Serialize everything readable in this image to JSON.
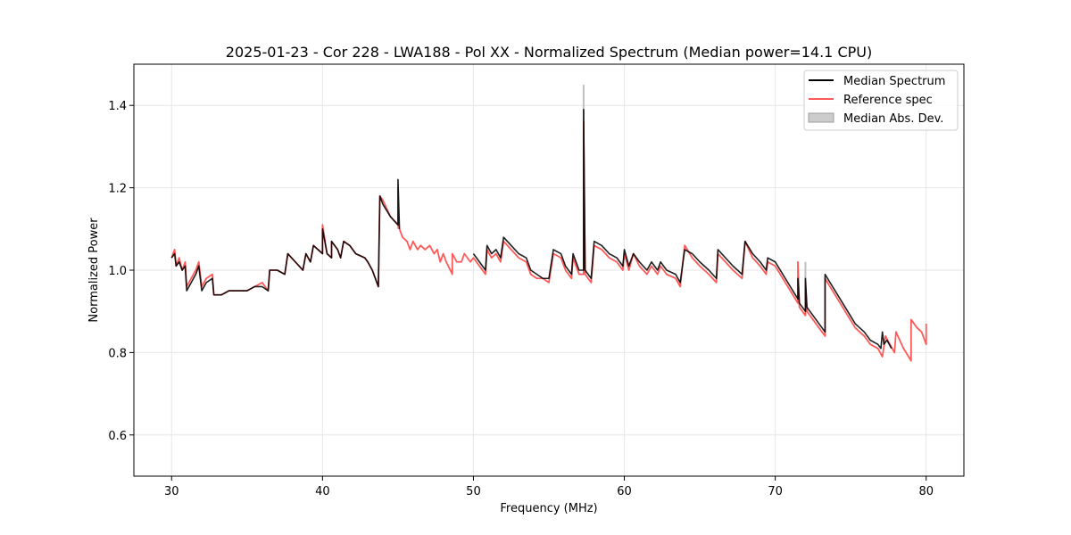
{
  "chart_data": {
    "type": "line",
    "title": "2025-01-23 - Cor 228 - LWA188 - Pol XX - Normalized Spectrum (Median power=14.1 CPU)",
    "xlabel": "Frequency (MHz)",
    "ylabel": "Normalized Power",
    "xlim": [
      27.5,
      82.5
    ],
    "ylim": [
      0.5,
      1.5
    ],
    "xticks": [
      30,
      40,
      50,
      60,
      70,
      80
    ],
    "yticks": [
      0.6,
      0.8,
      1.0,
      1.2,
      1.4
    ],
    "xtick_labels": [
      "30",
      "40",
      "50",
      "60",
      "70",
      "80"
    ],
    "ytick_labels": [
      "0.6",
      "0.8",
      "1.0",
      "1.2",
      "1.4"
    ],
    "grid": true,
    "legend_position": "top-right",
    "legend": [
      "Median Spectrum",
      "Reference spec",
      "Median Abs. Dev."
    ],
    "colors": {
      "median": "#000000",
      "reference": "#ff5a5a",
      "mad": "#bfbfbf"
    },
    "series": [
      {
        "name": "Reference spec",
        "points": [
          [
            30.0,
            1.03
          ],
          [
            30.2,
            1.05
          ],
          [
            30.3,
            1.01
          ],
          [
            30.5,
            1.03
          ],
          [
            30.7,
            1.0
          ],
          [
            30.9,
            1.02
          ],
          [
            31.0,
            0.96
          ],
          [
            31.3,
            0.98
          ],
          [
            31.6,
            1.0
          ],
          [
            31.8,
            1.02
          ],
          [
            32.0,
            0.96
          ],
          [
            32.3,
            0.98
          ],
          [
            32.7,
            0.99
          ],
          [
            32.8,
            0.94
          ],
          [
            33.3,
            0.94
          ],
          [
            33.8,
            0.95
          ],
          [
            34.3,
            0.95
          ],
          [
            35.0,
            0.95
          ],
          [
            35.5,
            0.96
          ],
          [
            36.0,
            0.97
          ],
          [
            36.4,
            0.95
          ],
          [
            36.5,
            1.0
          ],
          [
            37.0,
            1.0
          ],
          [
            37.5,
            0.99
          ],
          [
            37.7,
            1.04
          ],
          [
            38.2,
            1.02
          ],
          [
            38.7,
            1.0
          ],
          [
            38.9,
            1.04
          ],
          [
            39.2,
            1.02
          ],
          [
            39.4,
            1.06
          ],
          [
            39.7,
            1.05
          ],
          [
            40.0,
            1.04
          ],
          [
            40.0,
            1.11
          ],
          [
            40.3,
            1.04
          ],
          [
            40.6,
            1.03
          ],
          [
            40.6,
            1.07
          ],
          [
            41.0,
            1.05
          ],
          [
            41.2,
            1.03
          ],
          [
            41.4,
            1.07
          ],
          [
            41.8,
            1.06
          ],
          [
            42.2,
            1.04
          ],
          [
            42.8,
            1.03
          ],
          [
            43.0,
            1.02
          ],
          [
            43.3,
            1.0
          ],
          [
            43.7,
            0.96
          ],
          [
            43.8,
            1.18
          ],
          [
            44.0,
            1.17
          ],
          [
            44.5,
            1.13
          ],
          [
            45.0,
            1.11
          ],
          [
            45.3,
            1.08
          ],
          [
            45.6,
            1.07
          ],
          [
            45.8,
            1.05
          ],
          [
            46.0,
            1.07
          ],
          [
            46.3,
            1.05
          ],
          [
            46.5,
            1.06
          ],
          [
            46.8,
            1.05
          ],
          [
            47.1,
            1.06
          ],
          [
            47.4,
            1.04
          ],
          [
            47.6,
            1.05
          ],
          [
            47.8,
            1.02
          ],
          [
            48.0,
            1.04
          ],
          [
            48.2,
            1.02
          ],
          [
            48.6,
            0.99
          ],
          [
            48.6,
            1.04
          ],
          [
            48.9,
            1.02
          ],
          [
            49.2,
            1.02
          ],
          [
            49.4,
            1.04
          ],
          [
            49.8,
            1.02
          ],
          [
            50.0,
            1.03
          ],
          [
            50.4,
            1.01
          ],
          [
            50.8,
            0.99
          ],
          [
            50.9,
            1.05
          ],
          [
            51.2,
            1.03
          ],
          [
            51.5,
            1.04
          ],
          [
            51.8,
            1.02
          ],
          [
            52.0,
            1.07
          ],
          [
            52.5,
            1.05
          ],
          [
            53.0,
            1.03
          ],
          [
            53.5,
            1.02
          ],
          [
            53.8,
            0.99
          ],
          [
            54.2,
            0.98
          ],
          [
            54.6,
            0.98
          ],
          [
            55.0,
            0.97
          ],
          [
            55.3,
            1.04
          ],
          [
            55.8,
            1.03
          ],
          [
            56.1,
            1.0
          ],
          [
            56.5,
            0.98
          ],
          [
            56.6,
            1.03
          ],
          [
            57.0,
            0.99
          ],
          [
            57.3,
            0.99
          ],
          [
            57.3,
            1.36
          ],
          [
            57.4,
            0.99
          ],
          [
            57.8,
            0.97
          ],
          [
            58.0,
            1.06
          ],
          [
            58.5,
            1.05
          ],
          [
            59.0,
            1.03
          ],
          [
            59.5,
            1.02
          ],
          [
            59.9,
            1.0
          ],
          [
            60.0,
            1.04
          ],
          [
            60.3,
            1.0
          ],
          [
            60.6,
            1.04
          ],
          [
            61.0,
            1.01
          ],
          [
            61.5,
            0.99
          ],
          [
            61.8,
            1.01
          ],
          [
            62.2,
            0.99
          ],
          [
            62.4,
            1.01
          ],
          [
            62.8,
            0.99
          ],
          [
            63.4,
            0.98
          ],
          [
            63.7,
            0.96
          ],
          [
            64.0,
            1.06
          ],
          [
            64.5,
            1.03
          ],
          [
            65.0,
            1.01
          ],
          [
            65.6,
            0.99
          ],
          [
            66.1,
            0.97
          ],
          [
            66.2,
            1.04
          ],
          [
            66.7,
            1.02
          ],
          [
            67.2,
            1.0
          ],
          [
            67.8,
            0.98
          ],
          [
            68.0,
            1.07
          ],
          [
            68.5,
            1.03
          ],
          [
            69.0,
            1.01
          ],
          [
            69.4,
            0.99
          ],
          [
            69.5,
            1.02
          ],
          [
            70.0,
            1.01
          ],
          [
            70.5,
            0.98
          ],
          [
            71.0,
            0.95
          ],
          [
            71.5,
            0.92
          ],
          [
            71.5,
            1.02
          ],
          [
            71.6,
            0.91
          ],
          [
            72.0,
            0.89
          ],
          [
            72.0,
            0.97
          ],
          [
            72.1,
            0.9
          ],
          [
            72.7,
            0.87
          ],
          [
            73.3,
            0.84
          ],
          [
            73.3,
            0.98
          ],
          [
            73.8,
            0.95
          ],
          [
            74.3,
            0.92
          ],
          [
            74.8,
            0.89
          ],
          [
            75.3,
            0.86
          ],
          [
            75.9,
            0.84
          ],
          [
            76.3,
            0.82
          ],
          [
            76.8,
            0.81
          ],
          [
            77.1,
            0.79
          ],
          [
            77.3,
            0.84
          ],
          [
            77.6,
            0.82
          ],
          [
            77.9,
            0.8
          ],
          [
            78.0,
            0.85
          ],
          [
            78.5,
            0.81
          ],
          [
            79.0,
            0.78
          ],
          [
            79.0,
            0.88
          ],
          [
            79.4,
            0.86
          ],
          [
            79.7,
            0.85
          ],
          [
            80.0,
            0.82
          ],
          [
            80.0,
            0.87
          ]
        ]
      },
      {
        "name": "Median Spectrum",
        "points": [
          [
            30.0,
            1.03
          ],
          [
            30.2,
            1.04
          ],
          [
            30.3,
            1.01
          ],
          [
            30.5,
            1.02
          ],
          [
            30.7,
            1.0
          ],
          [
            30.9,
            1.01
          ],
          [
            31.0,
            0.95
          ],
          [
            31.3,
            0.97
          ],
          [
            31.6,
            0.99
          ],
          [
            31.8,
            1.01
          ],
          [
            32.0,
            0.95
          ],
          [
            32.3,
            0.97
          ],
          [
            32.7,
            0.98
          ],
          [
            32.8,
            0.94
          ],
          [
            33.3,
            0.94
          ],
          [
            33.8,
            0.95
          ],
          [
            34.3,
            0.95
          ],
          [
            35.0,
            0.95
          ],
          [
            35.5,
            0.96
          ],
          [
            36.0,
            0.96
          ],
          [
            36.4,
            0.95
          ],
          [
            36.5,
            1.0
          ],
          [
            37.0,
            1.0
          ],
          [
            37.5,
            0.99
          ],
          [
            37.7,
            1.04
          ],
          [
            38.2,
            1.02
          ],
          [
            38.7,
            1.0
          ],
          [
            38.9,
            1.04
          ],
          [
            39.2,
            1.02
          ],
          [
            39.4,
            1.06
          ],
          [
            39.7,
            1.05
          ],
          [
            40.0,
            1.04
          ],
          [
            40.0,
            1.1
          ],
          [
            40.3,
            1.04
          ],
          [
            40.6,
            1.03
          ],
          [
            40.6,
            1.07
          ],
          [
            41.0,
            1.05
          ],
          [
            41.2,
            1.03
          ],
          [
            41.4,
            1.07
          ],
          [
            41.8,
            1.06
          ],
          [
            42.2,
            1.04
          ],
          [
            42.8,
            1.03
          ],
          [
            43.0,
            1.02
          ],
          [
            43.3,
            1.0
          ],
          [
            43.7,
            0.96
          ],
          [
            43.8,
            1.18
          ],
          [
            44.0,
            1.16
          ],
          [
            44.5,
            1.13
          ],
          [
            45.0,
            1.11
          ],
          [
            45.0,
            1.22
          ],
          [
            45.1,
            1.1
          ]
        ]
      },
      {
        "name": "Median Spectrum",
        "points": [
          [
            50.0,
            1.04
          ],
          [
            50.4,
            1.02
          ],
          [
            50.8,
            1.0
          ],
          [
            50.9,
            1.06
          ],
          [
            51.2,
            1.04
          ],
          [
            51.5,
            1.05
          ],
          [
            51.8,
            1.03
          ],
          [
            52.0,
            1.08
          ],
          [
            52.5,
            1.06
          ],
          [
            53.0,
            1.04
          ],
          [
            53.5,
            1.03
          ],
          [
            53.8,
            1.0
          ],
          [
            54.2,
            0.99
          ],
          [
            54.6,
            0.98
          ],
          [
            55.0,
            0.98
          ],
          [
            55.3,
            1.05
          ],
          [
            55.8,
            1.04
          ],
          [
            56.1,
            1.01
          ],
          [
            56.5,
            0.99
          ],
          [
            56.6,
            1.04
          ],
          [
            57.0,
            1.0
          ],
          [
            57.3,
            1.0
          ],
          [
            57.3,
            1.39
          ],
          [
            57.4,
            1.0
          ],
          [
            57.8,
            0.98
          ],
          [
            58.0,
            1.07
          ],
          [
            58.5,
            1.06
          ],
          [
            59.0,
            1.04
          ],
          [
            59.5,
            1.03
          ],
          [
            59.9,
            1.01
          ],
          [
            60.0,
            1.05
          ],
          [
            60.3,
            1.01
          ],
          [
            60.6,
            1.04
          ],
          [
            61.0,
            1.02
          ],
          [
            61.5,
            1.0
          ],
          [
            61.8,
            1.02
          ],
          [
            62.2,
            1.0
          ],
          [
            62.4,
            1.02
          ],
          [
            62.8,
            1.0
          ],
          [
            63.4,
            0.99
          ],
          [
            63.7,
            0.97
          ],
          [
            64.0,
            1.05
          ],
          [
            64.5,
            1.04
          ],
          [
            65.0,
            1.02
          ],
          [
            65.6,
            1.0
          ],
          [
            66.1,
            0.98
          ],
          [
            66.2,
            1.05
          ],
          [
            66.7,
            1.03
          ],
          [
            67.2,
            1.01
          ],
          [
            67.8,
            0.99
          ],
          [
            68.0,
            1.07
          ],
          [
            68.5,
            1.04
          ],
          [
            69.0,
            1.02
          ],
          [
            69.4,
            1.0
          ],
          [
            69.5,
            1.03
          ],
          [
            70.0,
            1.02
          ],
          [
            70.5,
            0.99
          ],
          [
            71.0,
            0.96
          ],
          [
            71.5,
            0.93
          ],
          [
            71.5,
            0.98
          ],
          [
            71.6,
            0.92
          ],
          [
            72.0,
            0.9
          ],
          [
            72.0,
            0.98
          ],
          [
            72.1,
            0.91
          ],
          [
            72.7,
            0.88
          ],
          [
            73.3,
            0.85
          ],
          [
            73.3,
            0.99
          ],
          [
            73.8,
            0.96
          ],
          [
            74.3,
            0.93
          ],
          [
            74.8,
            0.9
          ],
          [
            75.3,
            0.87
          ],
          [
            75.9,
            0.85
          ],
          [
            76.3,
            0.83
          ],
          [
            76.8,
            0.82
          ],
          [
            77.0,
            0.81
          ],
          [
            77.1,
            0.85
          ],
          [
            77.2,
            0.82
          ],
          [
            77.4,
            0.83
          ],
          [
            77.7,
            0.81
          ]
        ]
      }
    ],
    "mad_spikes": [
      {
        "x": 57.3,
        "y0": 0.99,
        "y1": 1.45
      },
      {
        "x": 72.0,
        "y0": 0.9,
        "y1": 1.02
      },
      {
        "x": 45.0,
        "y0": 1.1,
        "y1": 1.2
      }
    ]
  }
}
